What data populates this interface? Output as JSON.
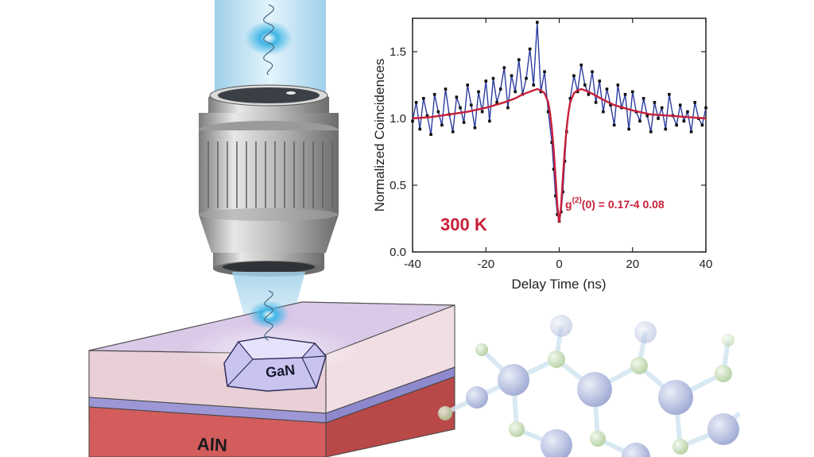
{
  "illustration": {
    "substrate_label": "AlN",
    "crystal_label": "GaN",
    "colors": {
      "beam": "#bfe3f3",
      "photon": "#2aa4d8",
      "objective_metal": "#b9b9b9",
      "top_layer": "#e3c9dc",
      "middle_layer": "#9d97d6",
      "substrate": "#d65d5d",
      "atom_large": "#a9b6da",
      "atom_small": "#c6ddb4",
      "bond": "#cde3f0"
    }
  },
  "chart_data": {
    "type": "line",
    "ylabel": "Normalized Coincidences",
    "xlabel": "Delay Time (ns)",
    "xlim": [
      -40,
      40
    ],
    "ylim": [
      0.0,
      1.75
    ],
    "xticks": [
      -40,
      -20,
      0,
      20,
      40
    ],
    "yticks": [
      0.0,
      0.5,
      1.0,
      1.5
    ],
    "xtick_labels": [
      "-40",
      "-20",
      "0",
      "20",
      "40"
    ],
    "ytick_labels": [
      "0.0",
      "0.5",
      "1.0",
      "1.5"
    ],
    "temperature_label": "300 K",
    "g2_label_prefix": "g",
    "g2_label_sup": "(2)",
    "g2_label_suffix": "(0)   = 0.17-4 0.08",
    "series": [
      {
        "style": "data",
        "color": "#2b3c9e",
        "marker_color": "#111111",
        "x": [
          -40,
          -39,
          -38,
          -37,
          -36,
          -35,
          -34,
          -33,
          -32,
          -31,
          -30,
          -29,
          -28,
          -27,
          -26,
          -25,
          -24,
          -23,
          -22,
          -21,
          -20,
          -19,
          -18,
          -17,
          -16,
          -15,
          -14,
          -13,
          -12,
          -11,
          -10,
          -9,
          -8,
          -7,
          -6,
          -5,
          -4,
          -3,
          -2,
          -1.5,
          -1,
          -0.5,
          0,
          0.5,
          1,
          1.5,
          2,
          3,
          4,
          5,
          6,
          7,
          8,
          9,
          10,
          11,
          12,
          13,
          14,
          15,
          16,
          17,
          18,
          19,
          20,
          21,
          22,
          23,
          24,
          25,
          26,
          27,
          28,
          29,
          30,
          31,
          32,
          33,
          34,
          35,
          36,
          37,
          38,
          39,
          40
        ],
        "y": [
          0.98,
          1.12,
          0.92,
          1.15,
          1.02,
          0.88,
          1.18,
          1.05,
          0.95,
          1.22,
          1.03,
          0.9,
          1.16,
          1.08,
          0.97,
          1.25,
          1.1,
          0.93,
          1.2,
          1.05,
          1.28,
          0.98,
          1.3,
          1.12,
          1.22,
          1.38,
          1.08,
          1.32,
          1.2,
          1.44,
          1.18,
          1.3,
          1.52,
          1.25,
          1.72,
          1.2,
          1.35,
          1.05,
          0.82,
          0.62,
          0.42,
          0.28,
          0.23,
          0.3,
          0.45,
          0.68,
          0.9,
          1.15,
          1.32,
          1.2,
          1.4,
          1.25,
          1.18,
          1.35,
          1.12,
          1.28,
          1.05,
          1.22,
          1.1,
          0.95,
          1.25,
          1.08,
          1.18,
          0.92,
          1.2,
          1.05,
          0.98,
          1.15,
          1.02,
          0.9,
          1.12,
          1.0,
          1.08,
          0.92,
          1.18,
          1.02,
          0.95,
          1.1,
          0.98,
          1.05,
          0.9,
          1.12,
          1.0,
          0.95,
          1.08
        ]
      },
      {
        "style": "fit",
        "color": "#c8203a",
        "x": [
          -40,
          -35,
          -30,
          -25,
          -20,
          -15,
          -12,
          -10,
          -8,
          -6,
          -5,
          -4,
          -3,
          -2.5,
          -2,
          -1.5,
          -1,
          -0.5,
          0,
          0.5,
          1,
          1.5,
          2,
          2.5,
          3,
          4,
          5,
          6,
          8,
          10,
          12,
          15,
          20,
          25,
          30,
          35,
          40
        ],
        "y": [
          1.0,
          1.01,
          1.03,
          1.05,
          1.08,
          1.12,
          1.15,
          1.18,
          1.2,
          1.22,
          1.21,
          1.19,
          1.12,
          1.04,
          0.92,
          0.76,
          0.56,
          0.34,
          0.22,
          0.34,
          0.56,
          0.76,
          0.92,
          1.04,
          1.12,
          1.19,
          1.21,
          1.22,
          1.2,
          1.17,
          1.14,
          1.1,
          1.06,
          1.03,
          1.02,
          1.01,
          1.0
        ]
      }
    ]
  }
}
